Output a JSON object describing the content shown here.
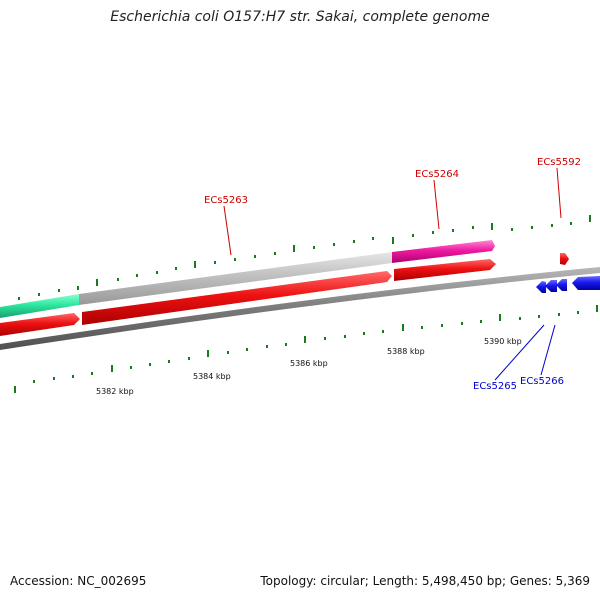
{
  "title": "Escherichia coli O157:H7 str. Sakai, complete genome",
  "footer": {
    "accession": "Accession: NC_002695",
    "summary": "Topology: circular; Length: 5,498,450 bp; Genes: 5,369"
  },
  "colors": {
    "forward_cds": "#ee1111",
    "reverse_cds": "#1a1aee",
    "highlight_pink": "#ee1aa0",
    "highlight_gray": "#c0c0c0",
    "highlight_green": "#2ee8a0",
    "backbone": "#808080",
    "tick": "#1b7a1b",
    "label_forward": "#cc0000",
    "label_reverse": "#0000cc"
  },
  "scale_labels": [
    "5382 kbp",
    "5384 kbp",
    "5386 kbp",
    "5388 kbp",
    "5390 kbp"
  ],
  "genes_forward": [
    "ECs5263",
    "ECs5264",
    "ECs5592"
  ],
  "genes_reverse": [
    "ECs5265",
    "ECs5266"
  ]
}
